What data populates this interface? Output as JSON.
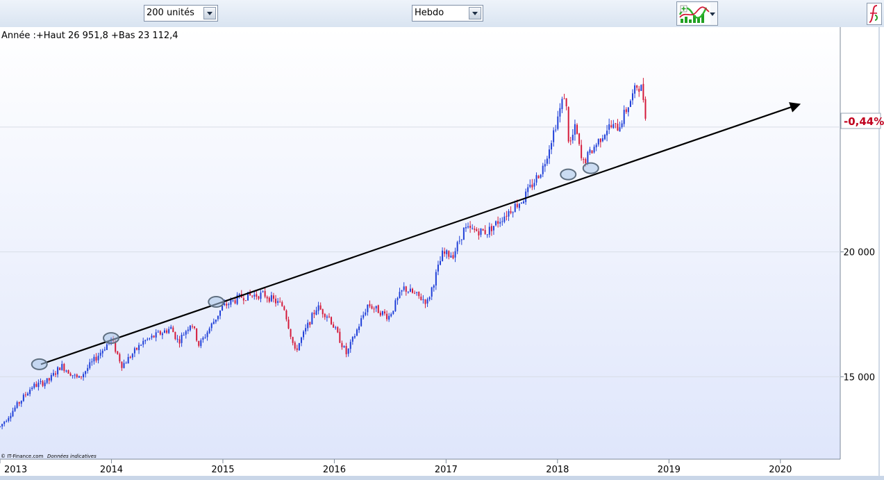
{
  "toolbar": {
    "units_select": "200 unités",
    "period_select": "Hebdo",
    "indicator_icon": "indicator-chart-icon",
    "function_icon": "function-fx-icon"
  },
  "header_text": "Année :+Haut 26 951,8 +Bas 23 112,4",
  "copyright": "© IT-Finance.com",
  "disclaimer": "Données indicatives",
  "last_change": "-0,44%",
  "colors": {
    "up": "#1f3fd8",
    "down": "#d41a3a",
    "trendline": "#000000",
    "badge_text": "#c0001e",
    "circle_fill": "#a9c6e8",
    "circle_stroke": "#5f6f80"
  },
  "chart_data": {
    "type": "candlestick",
    "timeframe": "Hebdo",
    "x_axis": {
      "range": [
        "2013-01-01",
        "2020-07-15"
      ],
      "tick_labels": [
        "2013",
        "2014",
        "2015",
        "2016",
        "2017",
        "2018",
        "2019",
        "2020"
      ]
    },
    "y_axis": {
      "range": [
        11700,
        29000
      ],
      "tick_values": [
        15000,
        20000,
        25000
      ],
      "tick_labels": [
        "15 000",
        "20 000",
        ""
      ]
    },
    "grid": "horizontal",
    "anchors": [
      [
        "2013-01-01",
        13000
      ],
      [
        "2013-04-15",
        14600
      ],
      [
        "2013-06-10",
        14850
      ],
      [
        "2013-07-20",
        15450
      ],
      [
        "2013-09-15",
        14900
      ],
      [
        "2013-12-31",
        16500
      ],
      [
        "2014-02-05",
        15450
      ],
      [
        "2014-04-15",
        16400
      ],
      [
        "2014-07-15",
        16950
      ],
      [
        "2014-08-08",
        16400
      ],
      [
        "2014-09-20",
        17200
      ],
      [
        "2014-10-15",
        16250
      ],
      [
        "2014-12-31",
        17800
      ],
      [
        "2015-03-01",
        18200
      ],
      [
        "2015-05-15",
        18300
      ],
      [
        "2015-07-20",
        17800
      ],
      [
        "2015-08-25",
        16000
      ],
      [
        "2015-11-05",
        17800
      ],
      [
        "2015-12-15",
        17400
      ],
      [
        "2016-02-10",
        15900
      ],
      [
        "2016-04-20",
        17900
      ],
      [
        "2016-06-27",
        17400
      ],
      [
        "2016-08-15",
        18550
      ],
      [
        "2016-11-01",
        18000
      ],
      [
        "2016-12-20",
        19900
      ],
      [
        "2017-01-25",
        19900
      ],
      [
        "2017-03-01",
        20900
      ],
      [
        "2017-05-15",
        20800
      ],
      [
        "2017-08-10",
        21800
      ],
      [
        "2017-09-10",
        22100
      ],
      [
        "2017-11-15",
        23400
      ],
      [
        "2018-01-26",
        26400
      ],
      [
        "2018-02-08",
        24200
      ],
      [
        "2018-03-01",
        25000
      ],
      [
        "2018-03-23",
        23500
      ],
      [
        "2018-05-01",
        24200
      ],
      [
        "2018-06-15",
        25000
      ],
      [
        "2018-07-20",
        25000
      ],
      [
        "2018-09-20",
        26700
      ],
      [
        "2018-10-05",
        26500
      ],
      [
        "2018-10-19",
        25300
      ]
    ],
    "trendline": {
      "start": [
        "2013-05-15",
        15500
      ],
      "end": [
        "2020-03-01",
        25900
      ],
      "arrow_end": true
    },
    "touch_points": [
      [
        "2013-05-10",
        15500
      ],
      [
        "2013-12-31",
        16550
      ],
      [
        "2014-12-10",
        18000
      ],
      [
        "2018-02-05",
        23100
      ],
      [
        "2018-04-20",
        23350
      ]
    ]
  }
}
